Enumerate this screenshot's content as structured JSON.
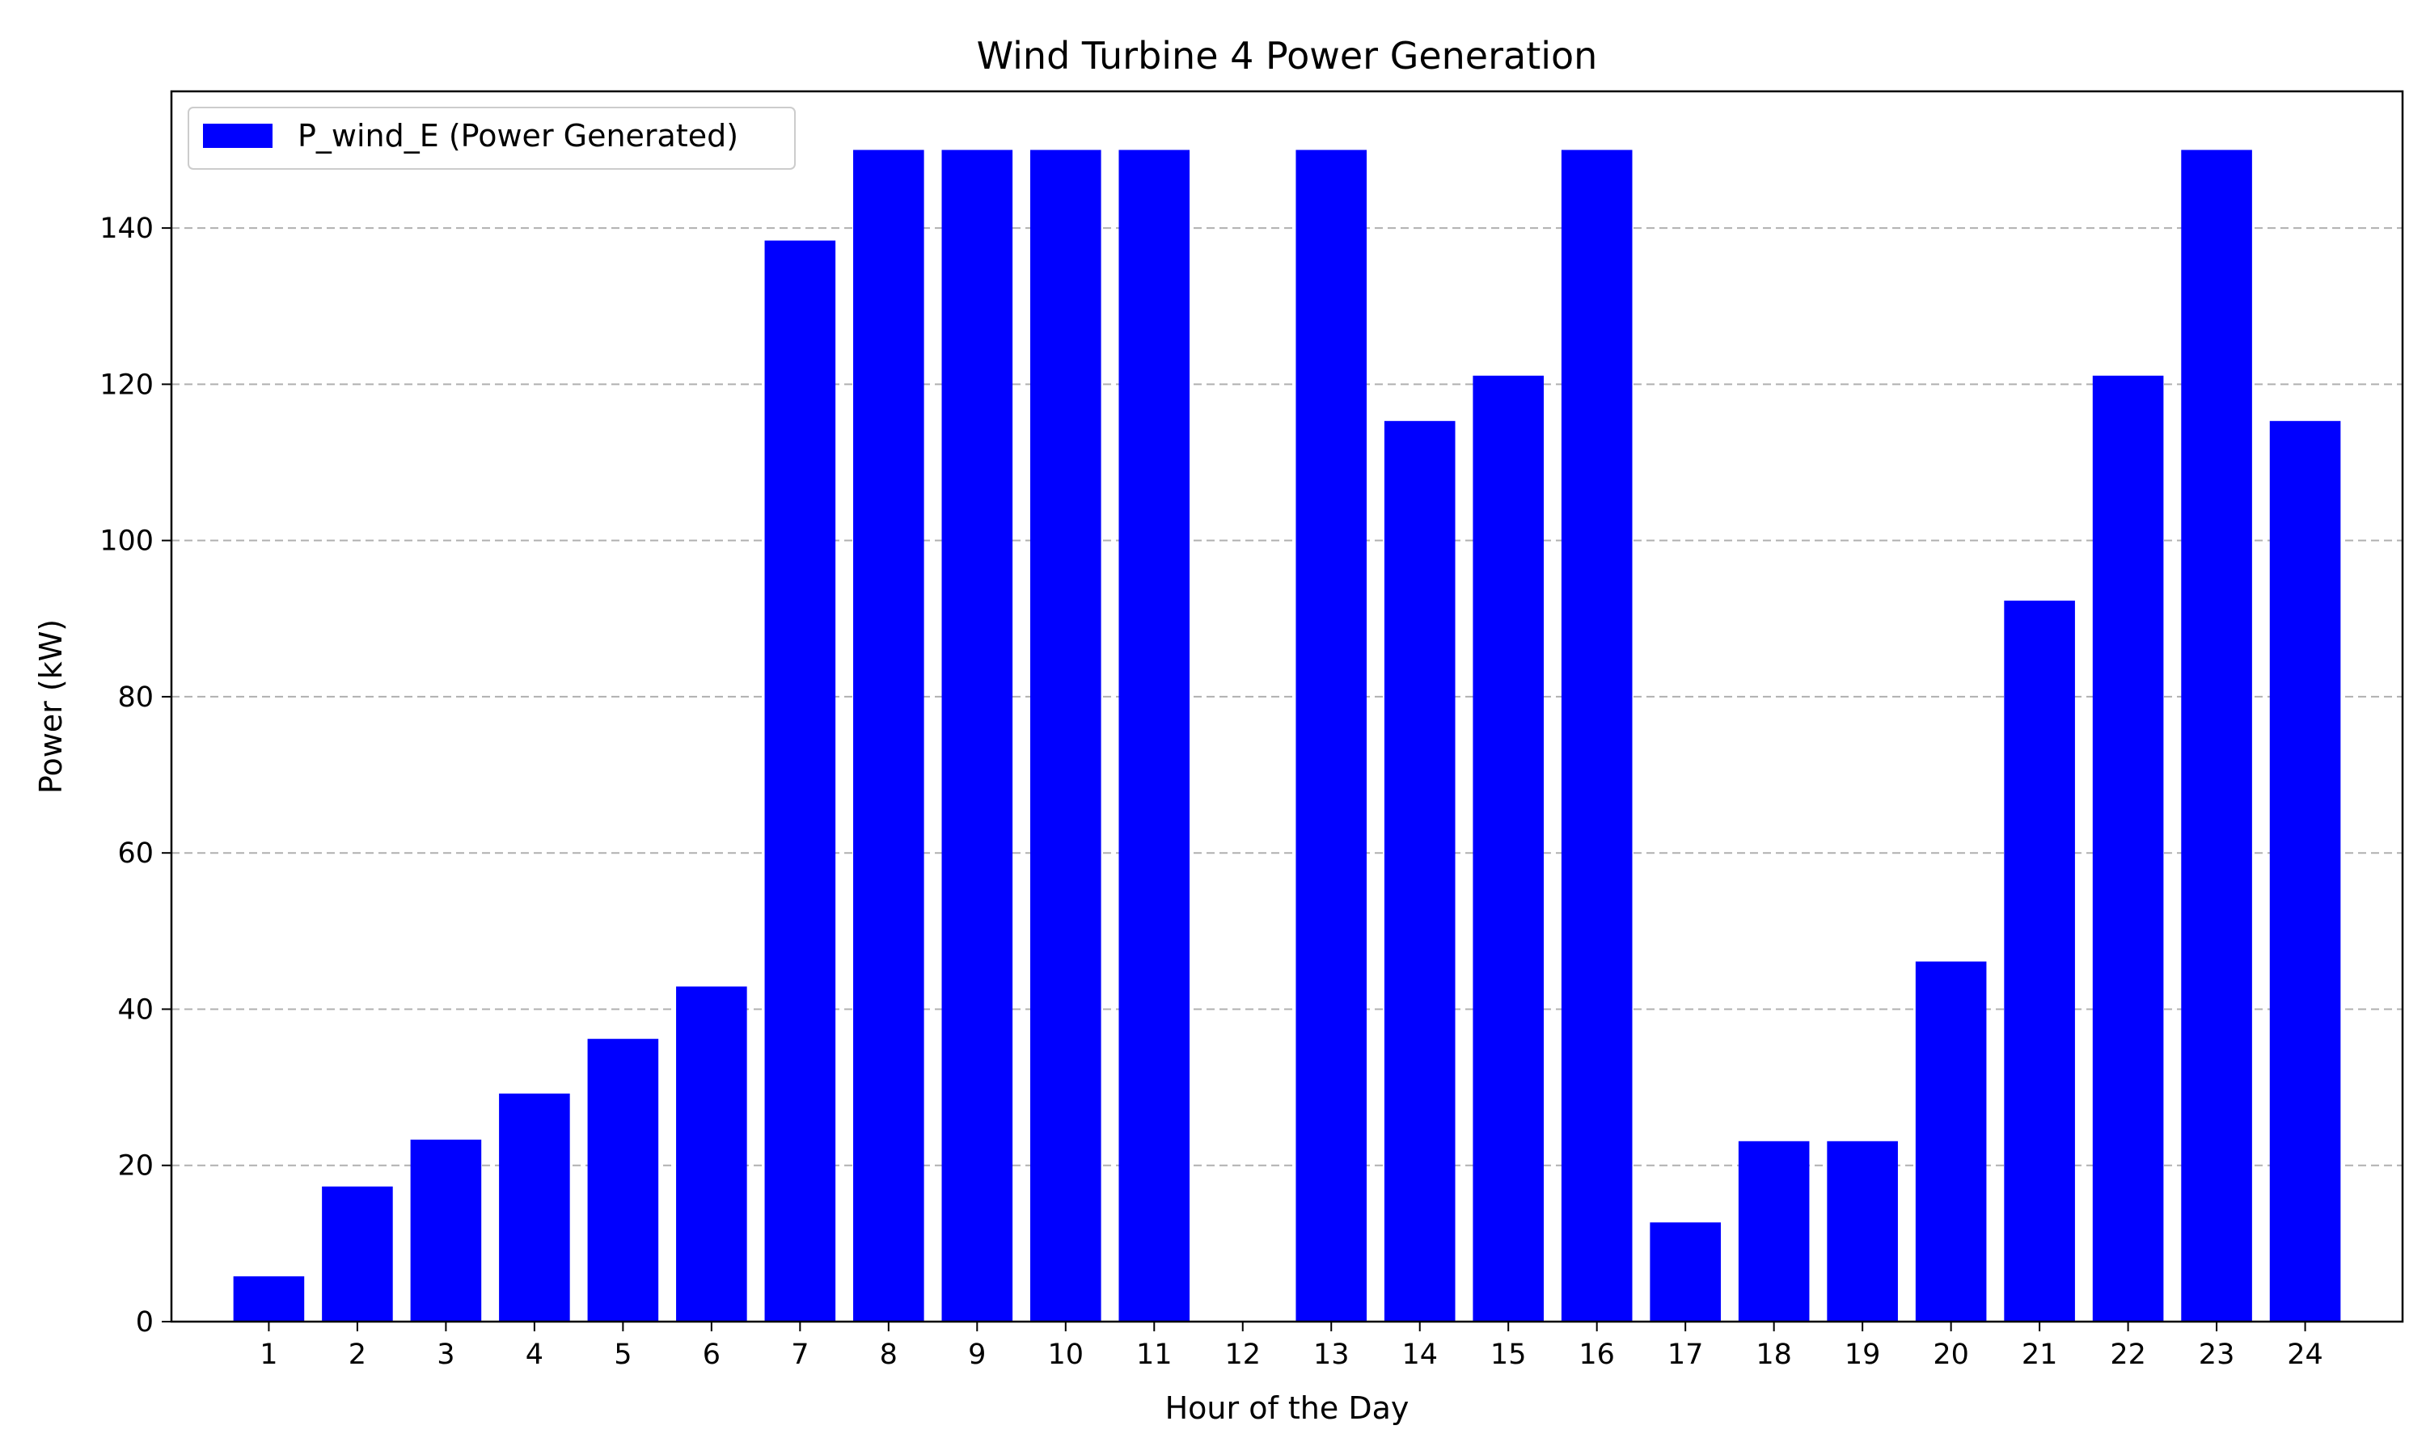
{
  "chart_data": {
    "type": "bar",
    "title": "Wind Turbine 4 Power Generation",
    "xlabel": "Hour of the Day",
    "ylabel": "Power (kW)",
    "categories": [
      "1",
      "2",
      "3",
      "4",
      "5",
      "6",
      "7",
      "8",
      "9",
      "10",
      "11",
      "12",
      "13",
      "14",
      "15",
      "16",
      "17",
      "18",
      "19",
      "20",
      "21",
      "22",
      "23",
      "24"
    ],
    "series": [
      {
        "name": "P_wind_E (Power Generated)",
        "color": "#0000ff",
        "values": [
          5.8,
          17.3,
          23.3,
          29.2,
          36.2,
          42.9,
          138.4,
          150,
          150,
          150,
          150,
          0,
          150,
          115.3,
          121.1,
          150,
          12.7,
          23.1,
          23.1,
          46.1,
          92.3,
          121.1,
          150,
          115.3
        ]
      }
    ],
    "ylim": [
      0,
      157.5
    ],
    "yticks": [
      0,
      20,
      40,
      60,
      80,
      100,
      120,
      140
    ],
    "grid": "y-dashed",
    "legend": "upper-left"
  }
}
